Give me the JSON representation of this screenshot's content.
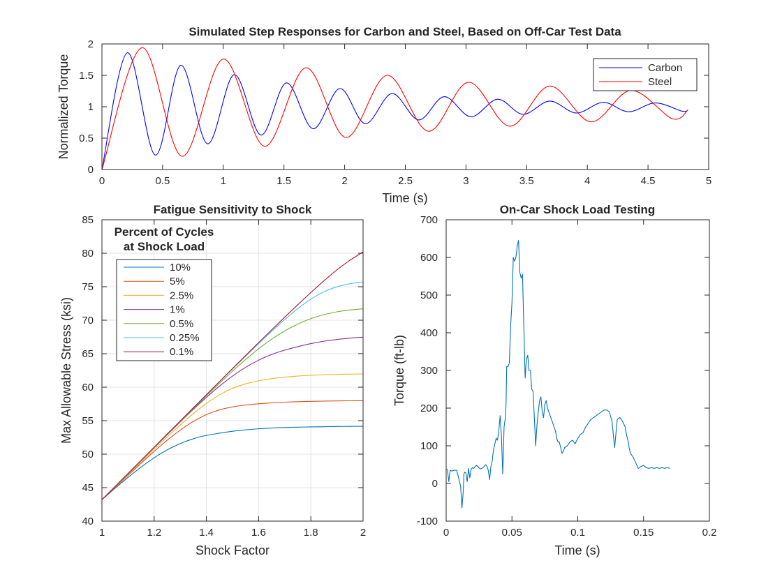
{
  "chart_data": [
    {
      "type": "line",
      "title": "Simulated Step Responses for Carbon and Steel, Based on Off-Car Test Data",
      "xlabel": "Time (s)",
      "ylabel": "Normalized Torque",
      "xlim": [
        0,
        5
      ],
      "ylim": [
        0,
        2
      ],
      "xticks": [
        0,
        0.5,
        1,
        1.5,
        2,
        2.5,
        3,
        3.5,
        4,
        4.5,
        5
      ],
      "xtick_labels": [
        "0",
        "0.5",
        "1",
        "1.5",
        "2",
        "2.5",
        "3",
        "3.5",
        "4",
        "4.5",
        "5"
      ],
      "yticks": [
        0,
        0.5,
        1,
        1.5,
        2
      ],
      "ytick_labels": [
        "0",
        "0.5",
        "1",
        "1.5",
        "2"
      ],
      "grid": false,
      "legend_position": "top-right",
      "series": [
        {
          "name": "Carbon",
          "color": "#0000ff",
          "x": [
            0,
            0.21,
            0.44,
            0.65,
            0.87,
            1.09,
            1.31,
            1.52,
            1.74,
            1.96,
            2.17,
            2.39,
            2.61,
            2.82,
            3.04,
            3.26,
            3.47,
            3.69,
            3.91,
            4.13,
            4.34,
            4.56,
            4.78,
            4.83
          ],
          "y": [
            0,
            1.86,
            0.23,
            1.66,
            0.41,
            1.51,
            0.55,
            1.38,
            0.65,
            1.29,
            0.73,
            1.21,
            0.79,
            1.16,
            0.84,
            1.12,
            0.88,
            1.09,
            0.9,
            1.07,
            0.92,
            1.06,
            0.93,
            0.95
          ]
        },
        {
          "name": "Steel",
          "color": "#ff0000",
          "x": [
            0,
            0.33,
            0.66,
            1.0,
            1.34,
            1.68,
            2.01,
            2.35,
            2.69,
            3.02,
            3.36,
            3.69,
            4.03,
            4.36,
            4.7,
            4.83
          ],
          "y": [
            0,
            1.94,
            0.21,
            1.76,
            0.37,
            1.62,
            0.51,
            1.5,
            0.61,
            1.39,
            0.69,
            1.33,
            0.76,
            1.26,
            0.81,
            0.95
          ]
        }
      ]
    },
    {
      "type": "line",
      "title": "Fatigue Sensitivity to Shock",
      "xlabel": "Shock Factor",
      "ylabel": "Max Allowable Stress (ksi)",
      "xlim": [
        1,
        2
      ],
      "ylim": [
        40,
        85
      ],
      "xticks": [
        1,
        1.2,
        1.4,
        1.6,
        1.8,
        2
      ],
      "xtick_labels": [
        "1",
        "1.2",
        "1.4",
        "1.6",
        "1.8",
        "2"
      ],
      "yticks": [
        40,
        45,
        50,
        55,
        60,
        65,
        70,
        75,
        80,
        85
      ],
      "ytick_labels": [
        "40",
        "45",
        "50",
        "55",
        "60",
        "65",
        "70",
        "75",
        "80",
        "85"
      ],
      "grid": true,
      "legend_title": "Percent of Cycles\nat Shock Load",
      "legend_position": "top-left",
      "x": [
        1.0,
        1.05,
        1.1,
        1.15,
        1.2,
        1.25,
        1.3,
        1.35,
        1.4,
        1.45,
        1.5,
        1.55,
        1.6,
        1.65,
        1.7,
        1.75,
        1.8,
        1.85,
        1.9,
        1.95,
        2.0
      ],
      "series": [
        {
          "name": "10%",
          "color": "#0072bd",
          "y": [
            43.2,
            44.89,
            46.53,
            48.07,
            49.46,
            50.64,
            51.58,
            52.3,
            52.8,
            53.13,
            53.42,
            53.63,
            53.79,
            53.9,
            53.98,
            54.03,
            54.07,
            54.1,
            54.13,
            54.15,
            54.16
          ]
        },
        {
          "name": "5%",
          "color": "#d95319",
          "y": [
            43.2,
            45.01,
            46.83,
            48.64,
            50.41,
            52.08,
            53.59,
            54.88,
            55.9,
            56.61,
            57.05,
            57.33,
            57.52,
            57.66,
            57.76,
            57.83,
            57.88,
            57.92,
            57.95,
            57.97,
            57.98
          ]
        },
        {
          "name": "2.5%",
          "color": "#edb120",
          "y": [
            43.2,
            45.08,
            46.96,
            48.84,
            50.72,
            52.57,
            54.36,
            56.05,
            57.57,
            58.85,
            59.83,
            60.49,
            60.95,
            61.28,
            61.5,
            61.66,
            61.77,
            61.85,
            61.91,
            61.95,
            61.98
          ]
        },
        {
          "name": "1%",
          "color": "#7e2f8e",
          "y": [
            43.2,
            45.14,
            47.08,
            49.02,
            50.96,
            52.9,
            54.82,
            56.69,
            58.48,
            60.15,
            61.66,
            62.96,
            64.03,
            64.88,
            65.53,
            66.05,
            66.5,
            66.86,
            67.12,
            67.32,
            67.47
          ]
        },
        {
          "name": "0.5%",
          "color": "#77ac30",
          "y": [
            43.2,
            45.15,
            47.1,
            49.05,
            51.0,
            52.95,
            54.89,
            56.81,
            58.71,
            60.57,
            62.38,
            64.12,
            65.73,
            67.17,
            68.4,
            69.42,
            70.23,
            70.83,
            71.25,
            71.53,
            71.7
          ]
        },
        {
          "name": "0.25%",
          "color": "#4dbeee",
          "y": [
            43.2,
            45.16,
            47.12,
            49.07,
            51.03,
            52.99,
            54.95,
            56.9,
            58.85,
            60.79,
            62.72,
            64.63,
            66.51,
            68.34,
            70.1,
            71.73,
            73.14,
            74.23,
            74.98,
            75.45,
            75.72
          ]
        },
        {
          "name": "0.1%",
          "color": "#a2142f",
          "y": [
            43.2,
            45.16,
            47.12,
            49.08,
            51.04,
            53.0,
            54.96,
            56.92,
            58.88,
            60.83,
            62.78,
            64.72,
            66.65,
            68.56,
            70.45,
            72.31,
            74.13,
            75.88,
            77.52,
            78.96,
            80.2
          ]
        }
      ]
    },
    {
      "type": "line",
      "title": "On-Car Shock Load Testing",
      "xlabel": "Time (s)",
      "ylabel": "Torque (ft-lb)",
      "xlim": [
        0,
        0.2
      ],
      "ylim": [
        -100,
        700
      ],
      "xticks": [
        0,
        0.05,
        0.1,
        0.15,
        0.2
      ],
      "xtick_labels": [
        "0",
        "0.05",
        "0.1",
        "0.15",
        "0.2"
      ],
      "yticks": [
        -100,
        0,
        100,
        200,
        300,
        400,
        500,
        600,
        700
      ],
      "ytick_labels": [
        "-100",
        "0",
        "100",
        "200",
        "300",
        "400",
        "500",
        "600",
        "700"
      ],
      "grid": false,
      "series": [
        {
          "name": "",
          "color": "#0072bd",
          "x": [
            0,
            0.001,
            0.002,
            0.003,
            0.004,
            0.006,
            0.008,
            0.01,
            0.011,
            0.012,
            0.013,
            0.0135,
            0.014,
            0.015,
            0.016,
            0.017,
            0.018,
            0.019,
            0.02,
            0.021,
            0.022,
            0.023,
            0.024,
            0.026,
            0.028,
            0.03,
            0.031,
            0.032,
            0.033,
            0.034,
            0.035,
            0.036,
            0.037,
            0.038,
            0.039,
            0.04,
            0.041,
            0.042,
            0.043,
            0.044,
            0.045,
            0.0455,
            0.046,
            0.047,
            0.048,
            0.049,
            0.05,
            0.051,
            0.052,
            0.053,
            0.054,
            0.055,
            0.056,
            0.057,
            0.058,
            0.059,
            0.06,
            0.061,
            0.062,
            0.063,
            0.064,
            0.065,
            0.066,
            0.067,
            0.068,
            0.069,
            0.07,
            0.071,
            0.072,
            0.073,
            0.074,
            0.075,
            0.076,
            0.077,
            0.078,
            0.079,
            0.08,
            0.081,
            0.082,
            0.083,
            0.084,
            0.085,
            0.086,
            0.087,
            0.088,
            0.089,
            0.09,
            0.092,
            0.094,
            0.096,
            0.098,
            0.1,
            0.102,
            0.104,
            0.106,
            0.108,
            0.11,
            0.112,
            0.114,
            0.116,
            0.118,
            0.12,
            0.122,
            0.124,
            0.126,
            0.128,
            0.13,
            0.132,
            0.134,
            0.136,
            0.137,
            0.138,
            0.1385,
            0.139,
            0.14,
            0.142,
            0.144,
            0.146,
            0.148,
            0.15,
            0.152,
            0.154,
            0.156,
            0.158,
            0.16,
            0.162,
            0.164,
            0.166,
            0.168,
            0.17
          ],
          "y": [
            38,
            36,
            5,
            35,
            33,
            35,
            35,
            8,
            -8,
            -65,
            -20,
            25,
            30,
            28,
            5,
            40,
            15,
            38,
            42,
            40,
            45,
            48,
            45,
            38,
            42,
            50,
            45,
            35,
            10,
            45,
            60,
            90,
            105,
            120,
            115,
            140,
            180,
            125,
            25,
            150,
            175,
            210,
            310,
            310,
            320,
            420,
            480,
            600,
            590,
            600,
            630,
            645,
            560,
            545,
            555,
            420,
            280,
            330,
            340,
            300,
            300,
            250,
            245,
            175,
            100,
            155,
            190,
            220,
            230,
            190,
            175,
            210,
            220,
            200,
            190,
            180,
            170,
            160,
            150,
            140,
            120,
            110,
            110,
            95,
            80,
            85,
            95,
            100,
            110,
            115,
            105,
            120,
            130,
            135,
            150,
            160,
            170,
            175,
            180,
            185,
            190,
            195,
            195,
            190,
            165,
            95,
            170,
            175,
            165,
            150,
            130,
            115,
            110,
            95,
            80,
            70,
            55,
            40,
            45,
            48,
            42,
            40,
            42,
            40,
            42,
            40,
            42,
            40,
            42,
            40
          ]
        }
      ]
    }
  ]
}
